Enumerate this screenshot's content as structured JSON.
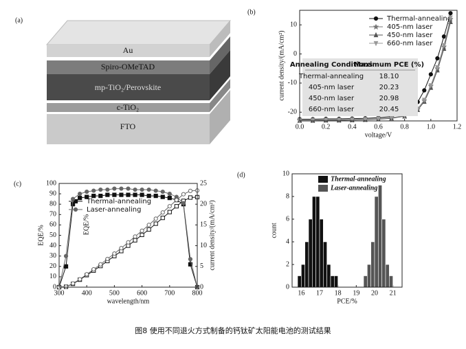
{
  "caption": "图8  使用不同退火方式制备的钙钛矿太阳能电池的测试结果",
  "diagram": {
    "label": "(a)",
    "layers": [
      "Au",
      "Spiro-OMeTAD",
      "mp-TiO₂/Perovskite",
      "c-TiO₂",
      "FTO"
    ]
  },
  "chart_data": [
    {
      "type": "line",
      "panel": "(b)",
      "xlabel": "voltage/V",
      "ylabel": "current density/(mA/cm²)",
      "x": [
        0,
        0.1,
        0.2,
        0.3,
        0.4,
        0.5,
        0.6,
        0.7,
        0.8,
        0.9,
        0.95,
        1.0,
        1.05,
        1.1,
        1.15
      ],
      "xlim": [
        0,
        1.2
      ],
      "xticks": [
        {
          "value": 0,
          "label": "0.0"
        },
        0.2,
        0.4,
        0.6,
        0.8,
        {
          "value": 1,
          "label": "1.0"
        },
        1.2
      ],
      "ylim": [
        -23,
        15
      ],
      "yticks": [
        -20,
        -10,
        0,
        10
      ],
      "legend": "upper-right",
      "series": [
        {
          "name": "Thermal-annealing",
          "color": "#111111",
          "marker": "circle",
          "values": [
            -22.4,
            -22.4,
            -22.3,
            -22.3,
            -22.2,
            -22.1,
            -21.9,
            -21.5,
            -20.4,
            -16.5,
            -12.5,
            -7,
            -1.5,
            6,
            14
          ]
        },
        {
          "name": "405-nm laser",
          "color": "#777777",
          "marker": "star",
          "values": [
            -22.8,
            -22.8,
            -22.7,
            -22.7,
            -22.6,
            -22.5,
            -22.3,
            -22,
            -21.3,
            -19,
            -16,
            -11,
            -5,
            2.5,
            12
          ]
        },
        {
          "name": "450-nm laser",
          "color": "#555555",
          "marker": "triangle-up",
          "values": [
            -22.9,
            -22.9,
            -22.8,
            -22.8,
            -22.7,
            -22.6,
            -22.4,
            -22.1,
            -21.4,
            -19.2,
            -16.4,
            -11.6,
            -5.6,
            1.8,
            11
          ]
        },
        {
          "name": "660-nm laser",
          "color": "#999999",
          "marker": "triangle-down",
          "values": [
            -22.7,
            -22.7,
            -22.6,
            -22.6,
            -22.5,
            -22.4,
            -22.2,
            -21.9,
            -21.2,
            -18.8,
            -15.8,
            -10.8,
            -4.6,
            3,
            12.5
          ]
        }
      ],
      "table": {
        "columns": [
          "Annealing Conditions",
          "Maximum PCE (%)"
        ],
        "rows": [
          [
            "Thermal-annealing",
            "18.10"
          ],
          [
            "405-nm laser",
            "20.23"
          ],
          [
            "450-nm laser",
            "20.98"
          ],
          [
            "660-nm laser",
            "20.45"
          ]
        ]
      }
    },
    {
      "type": "line",
      "panel": "(c)",
      "xlabel": "wavelength/nm",
      "ylabel": "EQE/%",
      "y2label": "current density/(mA/cm²)",
      "annotation": "EQE/%",
      "x": [
        300,
        325,
        350,
        375,
        400,
        425,
        450,
        475,
        500,
        525,
        550,
        575,
        600,
        625,
        650,
        675,
        700,
        725,
        750,
        775,
        800
      ],
      "xlim": [
        300,
        800
      ],
      "xticks": [
        300,
        400,
        500,
        600,
        700,
        800
      ],
      "ylim": [
        0,
        100
      ],
      "yticks": [
        0,
        10,
        20,
        30,
        40,
        50,
        60,
        70,
        80,
        90,
        100
      ],
      "y2lim": [
        0,
        25
      ],
      "y2ticks": [
        0,
        5,
        10,
        15,
        20,
        25
      ],
      "legend": "center-left",
      "series": [
        {
          "name": "Thermal-annealing",
          "color": "#111111",
          "marker": "square",
          "values": [
            0,
            20,
            80,
            86,
            87,
            88,
            88,
            89,
            89,
            89,
            89,
            89,
            89,
            88,
            88,
            87,
            86,
            84,
            80,
            22,
            0
          ],
          "current": [
            0,
            0.1,
            0.8,
            1.8,
            2.9,
            4.0,
            5.1,
            6.3,
            7.5,
            8.7,
            10.0,
            11.3,
            12.6,
            13.9,
            15.3,
            16.7,
            18.1,
            19.5,
            20.8,
            21.6,
            21.7
          ]
        },
        {
          "name": "Laser-annealing",
          "color": "#666666",
          "marker": "circle",
          "values": [
            0,
            30,
            85,
            90,
            92,
            93,
            94,
            94,
            95,
            95,
            95,
            94,
            94,
            94,
            93,
            92,
            90,
            87,
            81,
            27,
            0
          ],
          "current": [
            0,
            0.1,
            0.9,
            1.9,
            3.1,
            4.3,
            5.5,
            6.8,
            8.1,
            9.4,
            10.8,
            12.2,
            13.6,
            15.0,
            16.5,
            18.0,
            19.5,
            21.0,
            22.4,
            23.2,
            23.3
          ]
        }
      ]
    },
    {
      "type": "histogram",
      "panel": "(d)",
      "xlabel": "PCE/%",
      "ylabel": "count",
      "xlim": [
        15.5,
        21.5
      ],
      "xticks": [
        16,
        17,
        18,
        19,
        20,
        21
      ],
      "ylim": [
        0,
        10
      ],
      "yticks": [
        0,
        2,
        4,
        6,
        8,
        10
      ],
      "legend": "upper-left",
      "series": [
        {
          "name": "Thermal-annealing",
          "color": "#111111",
          "bins": [
            15.8,
            16.0,
            16.2,
            16.4,
            16.6,
            16.8,
            17.0,
            17.2,
            17.4,
            17.6,
            17.8,
            18.0
          ],
          "values": [
            1,
            2,
            4,
            6,
            8,
            8,
            6,
            4,
            2,
            1,
            1
          ]
        },
        {
          "name": "Laser-annealing",
          "color": "#555555",
          "bins": [
            19.4,
            19.6,
            19.8,
            20.0,
            20.2,
            20.4,
            20.6,
            20.8,
            21.0
          ],
          "values": [
            1,
            2,
            4,
            8,
            9,
            6,
            2,
            1
          ]
        }
      ]
    }
  ]
}
